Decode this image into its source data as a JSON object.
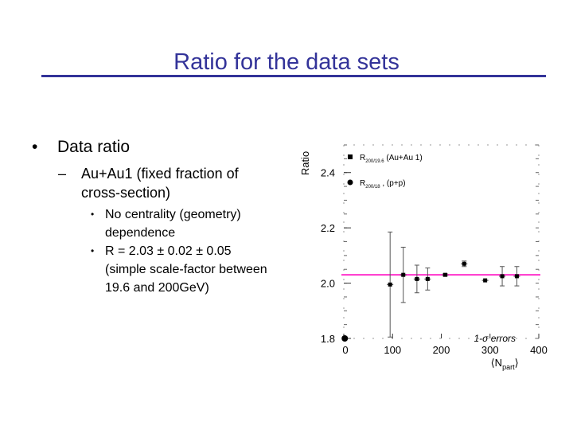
{
  "slide": {
    "title": "Ratio for the data sets",
    "bullet1": "Data ratio",
    "bullet2": "Au+Au1 (fixed fraction of cross-section)",
    "bullet3a": "No centrality (geometry) dependence",
    "bullet3b": "R = 2.03 ± 0.02 ± 0.05 (simple scale-factor between 19.6 and 200GeV)"
  },
  "chart_data": {
    "type": "scatter",
    "ylabel": "Ratio",
    "xlabel": "⟨N_part⟩",
    "xlim": [
      0,
      400
    ],
    "ylim": [
      1.8,
      2.5
    ],
    "xticks": [
      0,
      100,
      200,
      300,
      400
    ],
    "yticks": [
      1.8,
      2.0,
      2.2,
      2.4
    ],
    "reference_line": {
      "y": 2.03,
      "color": "#ff33cc"
    },
    "annotation": "1-σ errors",
    "legend": [
      {
        "marker": "square",
        "label_main": "R",
        "label_sub": "200/19.6",
        "label_tail": "(Au+Au 1)"
      },
      {
        "marker": "circle",
        "label_main": "R",
        "label_sub": "200/18",
        "label_tail": ", (p+p)"
      }
    ],
    "series": [
      {
        "name": "Au+Au 1",
        "marker": "square",
        "points": [
          {
            "x": 95,
            "y": 1.995,
            "err": 0.19
          },
          {
            "x": 122,
            "y": 2.03,
            "err": 0.1
          },
          {
            "x": 150,
            "y": 2.015,
            "err": 0.05
          },
          {
            "x": 172,
            "y": 2.015,
            "err": 0.04
          },
          {
            "x": 208,
            "y": 2.03,
            "err": 0.005
          },
          {
            "x": 247,
            "y": 2.07,
            "err": 0.01
          },
          {
            "x": 290,
            "y": 2.01,
            "err": 0.0
          },
          {
            "x": 325,
            "y": 2.025,
            "err": 0.035
          },
          {
            "x": 355,
            "y": 2.025,
            "err": 0.035
          }
        ]
      },
      {
        "name": "p+p",
        "marker": "circle",
        "points": [
          {
            "x": 2,
            "y": 1.8,
            "err": 0.0
          }
        ]
      }
    ]
  }
}
